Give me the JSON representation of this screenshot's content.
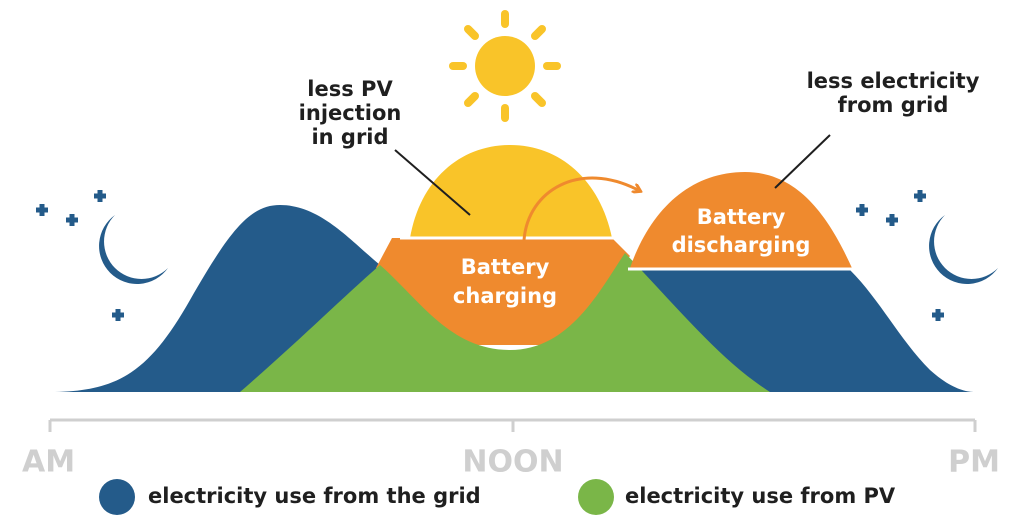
{
  "annotations": [
    {
      "lines": [
        "less PV",
        "injection",
        "in grid"
      ]
    },
    {
      "lines": [
        "less electricity",
        "from grid"
      ]
    }
  ],
  "regions": [
    {
      "lines": [
        "Battery",
        "charging"
      ]
    },
    {
      "lines": [
        "Battery",
        "discharging"
      ]
    }
  ],
  "axis": {
    "labels": [
      "AM",
      "NOON",
      "PM"
    ]
  },
  "legend": [
    {
      "label": "electricity use from the grid",
      "color": "#245b8a"
    },
    {
      "label": "electricity use from PV",
      "color": "#7ab648"
    }
  ]
}
